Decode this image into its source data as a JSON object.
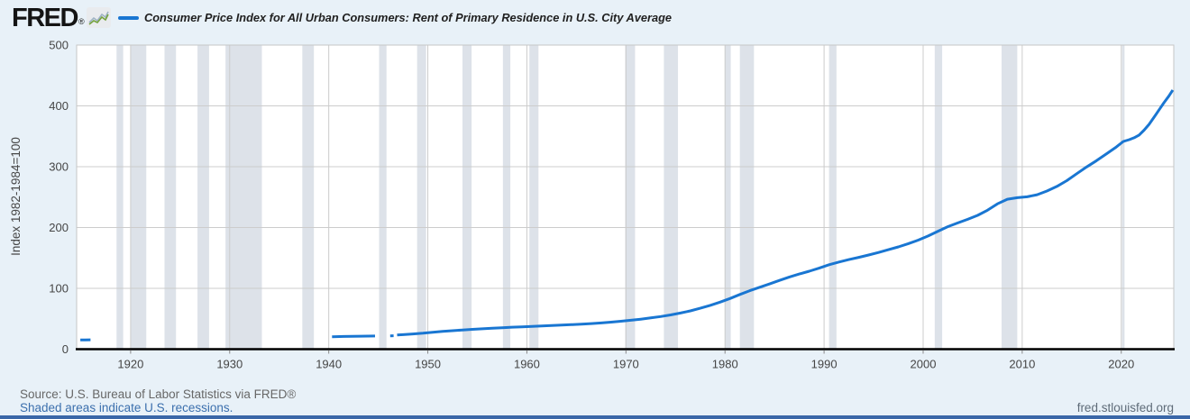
{
  "header": {
    "logo": "FRED",
    "logo_reg": "®",
    "sparkline_icon": "line-chart-icon",
    "series_title": "Consumer Price Index for All Urban Consumers: Rent of Primary Residence in U.S. City Average"
  },
  "footer": {
    "source": "Source: U.S. Bureau of Labor Statistics via FRED®",
    "note": "Shaded areas indicate U.S. recessions.",
    "site": "fred.stlouisfed.org"
  },
  "colors": {
    "page_bg": "#e8f1f8",
    "plot_bg": "#ffffff",
    "line": "#1976d2",
    "grid": "#cccccc",
    "plot_border": "#c6c6c6",
    "axis": "#000000",
    "tick_text": "#454545",
    "recession_band": "#dde2e9",
    "link": "#3b6fad",
    "bottom_bar": "#3a67a8"
  },
  "chart_data": {
    "type": "line",
    "title": "Consumer Price Index for All Urban Consumers: Rent of Primary Residence in U.S. City Average",
    "xlabel": "",
    "ylabel": "Index 1982-1984=100",
    "x_range": [
      1914.55,
      2025.3
    ],
    "y_range": [
      0,
      500
    ],
    "x_ticks": [
      1920,
      1930,
      1940,
      1950,
      1960,
      1970,
      1980,
      1990,
      2000,
      2010,
      2020
    ],
    "y_ticks": [
      0,
      100,
      200,
      300,
      400,
      500
    ],
    "grid": true,
    "legend_position": "top",
    "recessions": {
      "note": "Shaded areas indicate U.S. recessions.",
      "periods": [
        [
          1918.58,
          1919.25
        ],
        [
          1920.0,
          1921.58
        ],
        [
          1923.42,
          1924.58
        ],
        [
          1926.75,
          1927.92
        ],
        [
          1929.58,
          1933.25
        ],
        [
          1937.33,
          1938.5
        ],
        [
          1945.08,
          1945.83
        ],
        [
          1948.92,
          1949.83
        ],
        [
          1953.5,
          1954.42
        ],
        [
          1957.58,
          1958.33
        ],
        [
          1960.25,
          1961.17
        ],
        [
          1969.92,
          1970.92
        ],
        [
          1973.83,
          1975.25
        ],
        [
          1980.0,
          1980.58
        ],
        [
          1981.5,
          1982.92
        ],
        [
          1990.5,
          1991.25
        ],
        [
          2001.17,
          2001.92
        ],
        [
          2007.92,
          2009.5
        ],
        [
          2020.08,
          2020.33
        ]
      ]
    },
    "series": [
      {
        "name": "Consumer Price Index for All Urban Consumers: Rent of Primary Residence in U.S. City Average",
        "units": "Index 1982-1984=100",
        "segments": [
          [
            [
              1914.92,
              15.2
            ],
            [
              1915.4,
              15.3
            ],
            [
              1915.95,
              15.4
            ]
          ],
          [
            [
              1940.33,
              20.5
            ],
            [
              1941.5,
              20.9
            ],
            [
              1943.2,
              21.3
            ],
            [
              1944.67,
              21.6
            ]
          ],
          [
            [
              1946.2,
              21.9
            ],
            [
              1946.55,
              22.0
            ]
          ],
          [
            [
              1946.9,
              23.3
            ],
            [
              1947.5,
              23.9
            ],
            [
              1948.5,
              25.0
            ],
            [
              1949.5,
              26.2
            ],
            [
              1950.5,
              27.8
            ],
            [
              1951.5,
              29.2
            ],
            [
              1952.5,
              30.4
            ],
            [
              1953.5,
              31.6
            ],
            [
              1954.5,
              32.6
            ],
            [
              1955.5,
              33.5
            ],
            [
              1956.5,
              34.4
            ],
            [
              1957.5,
              35.3
            ],
            [
              1958.5,
              36.1
            ],
            [
              1959.5,
              36.8
            ],
            [
              1960.5,
              37.5
            ],
            [
              1961.5,
              38.2
            ],
            [
              1962.5,
              38.9
            ],
            [
              1963.5,
              39.6
            ],
            [
              1964.5,
              40.3
            ],
            [
              1965.5,
              41.1
            ],
            [
              1966.5,
              42.0
            ],
            [
              1967.5,
              43.1
            ],
            [
              1968.5,
              44.4
            ],
            [
              1969.5,
              45.9
            ],
            [
              1970.5,
              47.5
            ],
            [
              1971.5,
              49.4
            ],
            [
              1972.5,
              51.4
            ],
            [
              1973.5,
              53.6
            ],
            [
              1974.5,
              56.3
            ],
            [
              1975.5,
              59.4
            ],
            [
              1976.5,
              63.0
            ],
            [
              1977.5,
              67.2
            ],
            [
              1978.5,
              72.0
            ],
            [
              1979.5,
              77.3
            ],
            [
              1980.5,
              83.2
            ],
            [
              1981.5,
              90.0
            ],
            [
              1982.5,
              96.2
            ],
            [
              1983.5,
              101.8
            ],
            [
              1984.5,
              107.3
            ],
            [
              1985.5,
              113.1
            ],
            [
              1986.5,
              118.7
            ],
            [
              1987.5,
              123.5
            ],
            [
              1988.5,
              128.2
            ],
            [
              1989.5,
              133.2
            ],
            [
              1990.5,
              138.8
            ],
            [
              1991.5,
              143.3
            ],
            [
              1992.5,
              147.2
            ],
            [
              1993.5,
              150.9
            ],
            [
              1994.5,
              154.8
            ],
            [
              1995.5,
              159.0
            ],
            [
              1996.5,
              163.5
            ],
            [
              1997.5,
              168.2
            ],
            [
              1998.5,
              173.5
            ],
            [
              1999.5,
              179.3
            ],
            [
              2000.5,
              186.0
            ],
            [
              2001.5,
              194.0
            ],
            [
              2002.5,
              201.5
            ],
            [
              2003.5,
              207.5
            ],
            [
              2004.5,
              213.5
            ],
            [
              2005.5,
              220.0
            ],
            [
              2006.5,
              228.5
            ],
            [
              2007.5,
              239.0
            ],
            [
              2008.5,
              246.5
            ],
            [
              2009.5,
              249.0
            ],
            [
              2010.5,
              250.5
            ],
            [
              2011.5,
              254.0
            ],
            [
              2012.5,
              260.0
            ],
            [
              2013.5,
              267.5
            ],
            [
              2014.5,
              277.0
            ],
            [
              2015.5,
              288.5
            ],
            [
              2016.5,
              299.5
            ],
            [
              2017.5,
              310.0
            ],
            [
              2018.5,
              321.0
            ],
            [
              2019.5,
              332.5
            ],
            [
              2020.2,
              341.5
            ],
            [
              2020.8,
              344.5
            ],
            [
              2021.3,
              347.5
            ],
            [
              2021.8,
              352.0
            ],
            [
              2022.3,
              360.0
            ],
            [
              2022.8,
              369.5
            ],
            [
              2023.3,
              381.0
            ],
            [
              2023.8,
              393.0
            ],
            [
              2024.3,
              405.0
            ],
            [
              2024.8,
              416.0
            ],
            [
              2025.2,
              426.0
            ]
          ]
        ]
      }
    ]
  }
}
